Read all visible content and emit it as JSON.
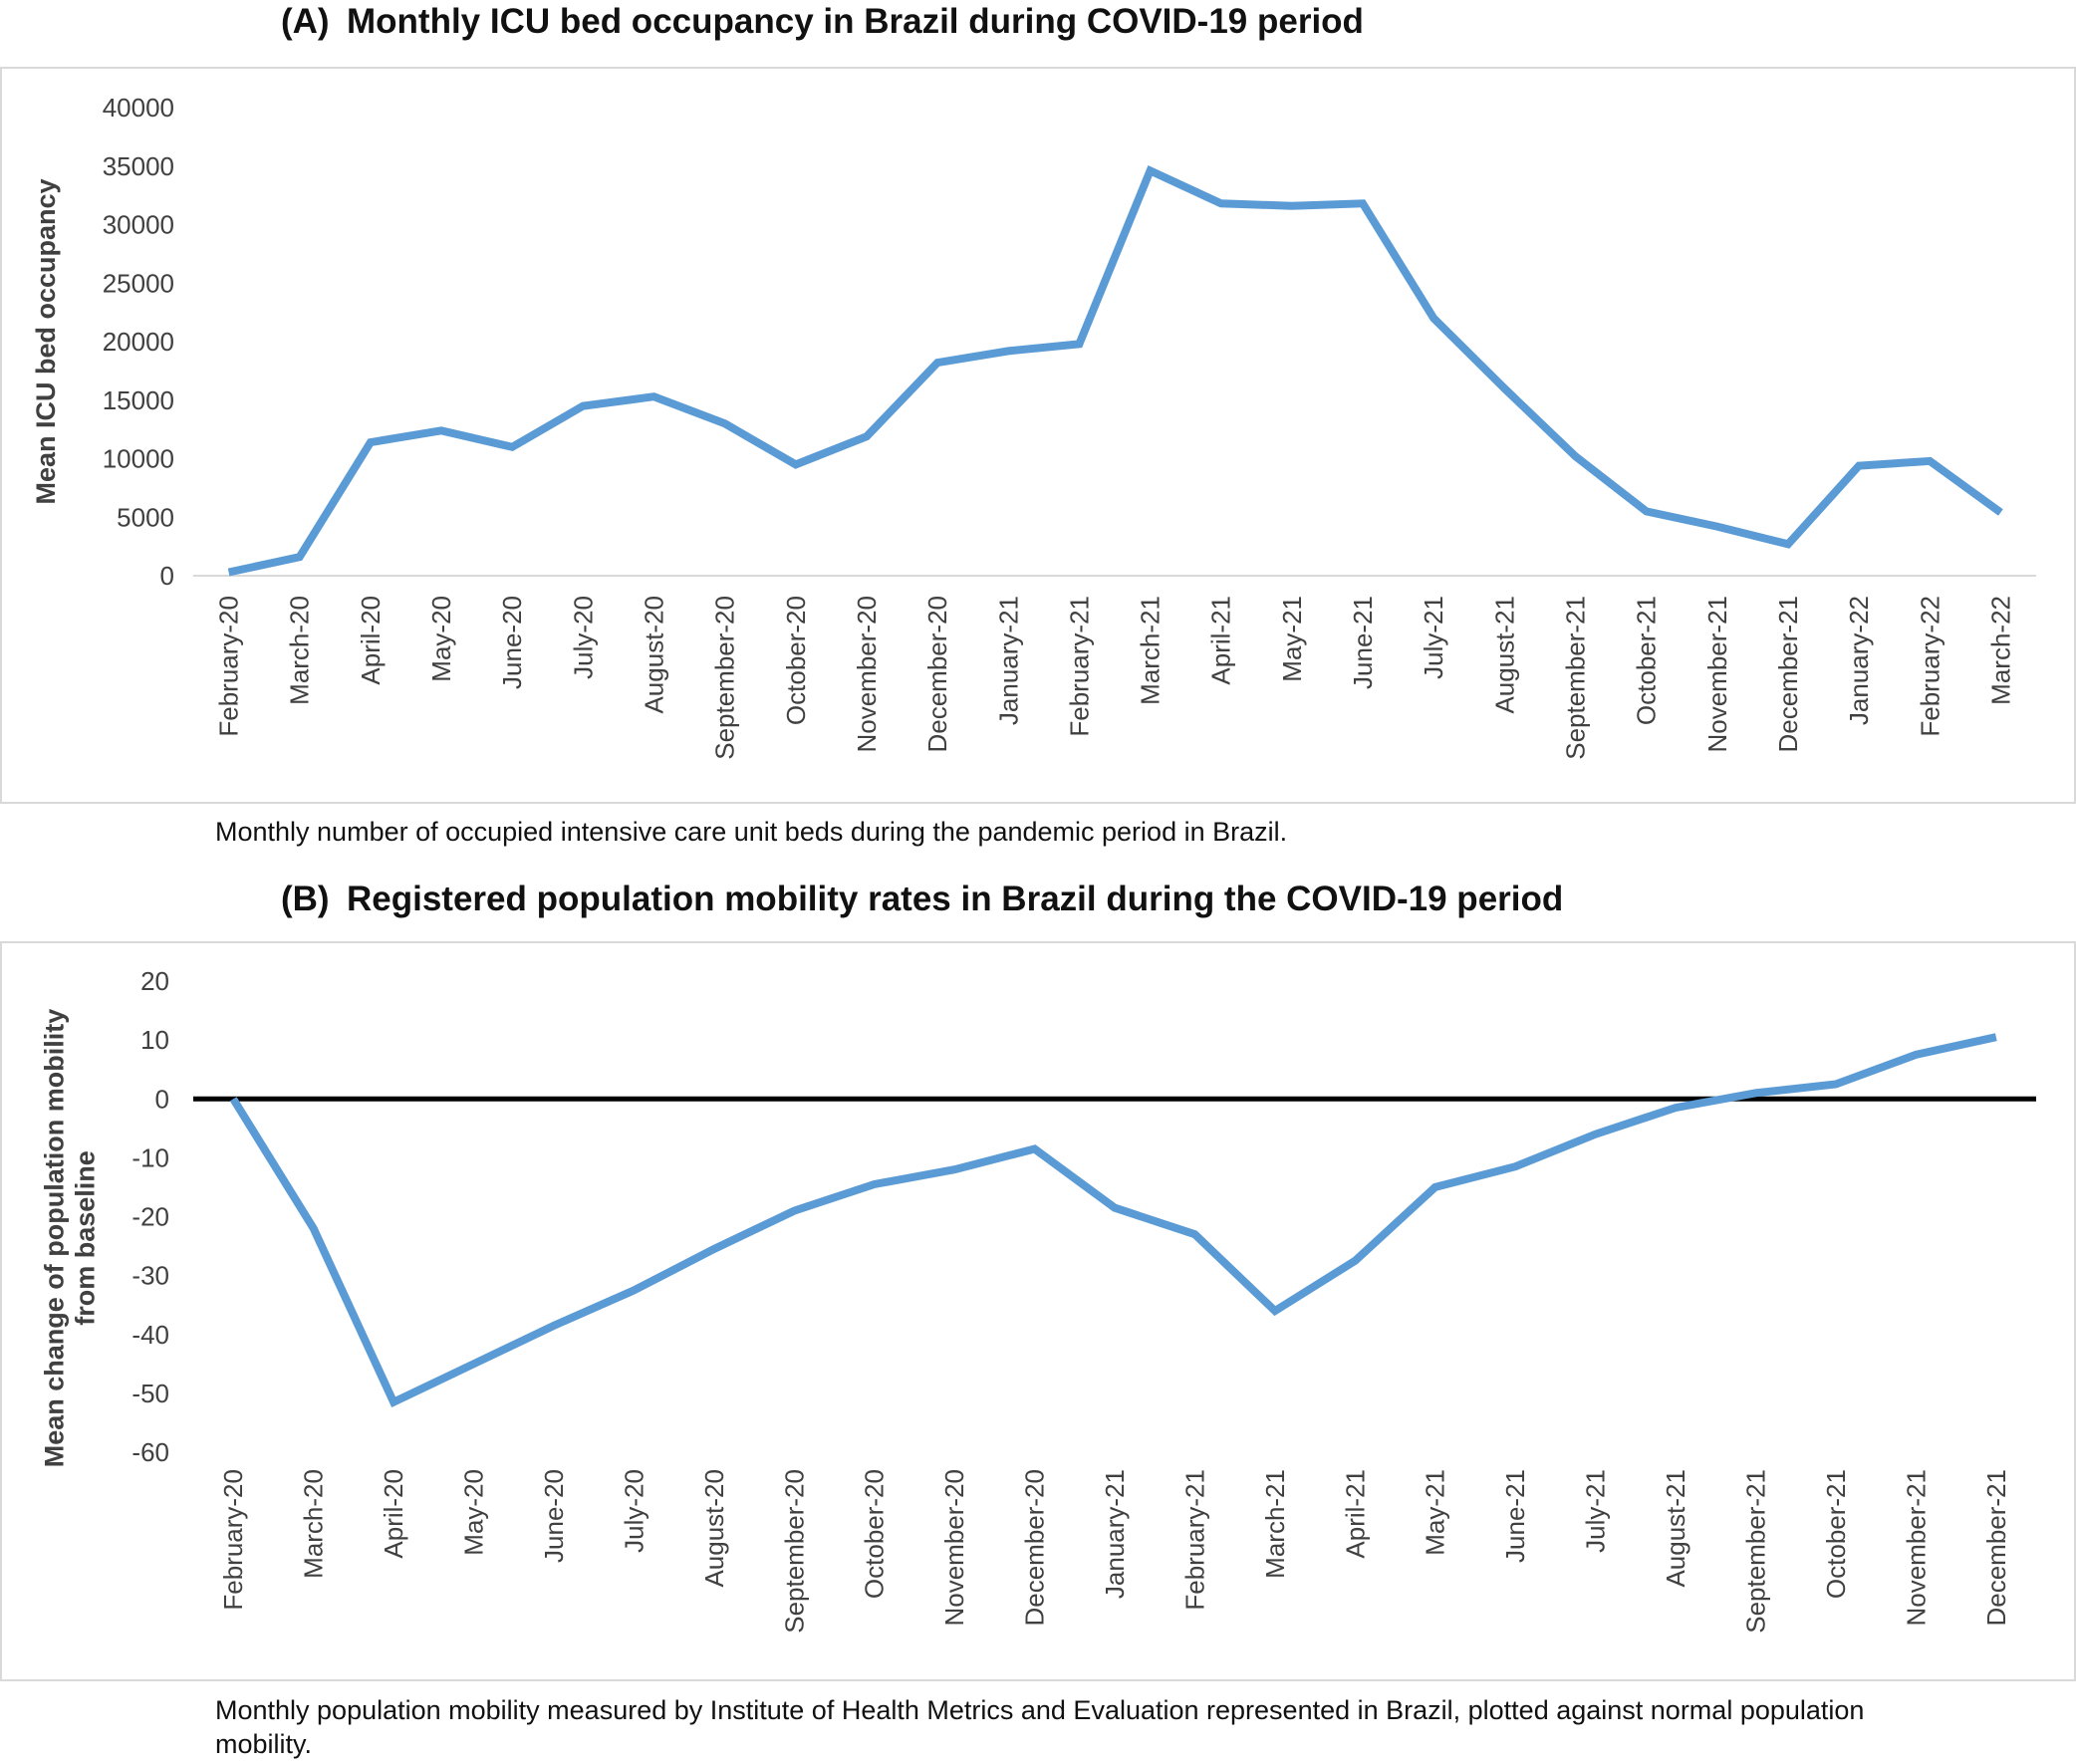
{
  "panel_a": {
    "letter": "(A)",
    "title": "Monthly ICU bed occupancy in Brazil during COVID-19 period",
    "caption": "Monthly number of occupied intensive care unit beds during the pandemic period in Brazil."
  },
  "panel_b": {
    "letter": "(B)",
    "title": "Registered population mobility rates in Brazil during the COVID-19 period",
    "caption": "Monthly population mobility measured by Institute of Health Metrics and Evaluation represented in Brazil, plotted against normal population mobility."
  },
  "colors": {
    "line": "#5b9bd5",
    "zero_line": "#000000",
    "axis": "#d9d9d9",
    "tick_text": "#404040"
  },
  "chart_data": [
    {
      "type": "line",
      "title": "Monthly ICU bed occupancy in Brazil during COVID-19 period",
      "ylabel": [
        "Mean ICU bed occupancy"
      ],
      "xlabel": "",
      "ylim": [
        0,
        40000
      ],
      "yticks": [
        "0",
        "5000",
        "10000",
        "15000",
        "20000",
        "25000",
        "30000",
        "35000",
        "40000"
      ],
      "grid": false,
      "categories": [
        "February-20",
        "March-20",
        "April-20",
        "May-20",
        "June-20",
        "July-20",
        "August-20",
        "September-20",
        "October-20",
        "November-20",
        "December-20",
        "January-21",
        "February-21",
        "March-21",
        "April-21",
        "May-21",
        "June-21",
        "July-21",
        "August-21",
        "September-21",
        "October-21",
        "November-21",
        "December-21",
        "January-22",
        "February-22",
        "March-22"
      ],
      "series": [
        {
          "values": [
            300,
            1600,
            11400,
            12400,
            11000,
            14500,
            15300,
            13000,
            9500,
            11900,
            18200,
            19200,
            19800,
            34600,
            31800,
            31600,
            31800,
            22000,
            16000,
            10200,
            5500,
            4200,
            2700,
            9400,
            9800,
            5400
          ]
        }
      ]
    },
    {
      "type": "line",
      "title": "Registered population mobility rates in Brazil during the COVID-19 period",
      "ylabel": [
        "Mean change of population mobility",
        "from baseline"
      ],
      "xlabel": "",
      "ylim": [
        -60,
        20
      ],
      "yticks": [
        "-60",
        "-50",
        "-40",
        "-30",
        "-20",
        "-10",
        "0",
        "10",
        "20"
      ],
      "grid": false,
      "categories": [
        "February-20",
        "March-20",
        "April-20",
        "May-20",
        "June-20",
        "July-20",
        "August-20",
        "September-20",
        "October-20",
        "November-20",
        "December-20",
        "January-21",
        "February-21",
        "March-21",
        "April-21",
        "May-21",
        "June-21",
        "July-21",
        "August-21",
        "September-21",
        "October-21",
        "November-21",
        "December-21"
      ],
      "series": [
        {
          "values": [
            0,
            -22,
            -51.5,
            -45,
            -38.5,
            -32.5,
            -25.5,
            -19,
            -14.5,
            -12,
            -8.5,
            -18.5,
            -23,
            -36,
            -27.5,
            -15,
            -11.5,
            -6,
            -1.5,
            1,
            2.5,
            7.5,
            10.5
          ]
        }
      ]
    }
  ]
}
